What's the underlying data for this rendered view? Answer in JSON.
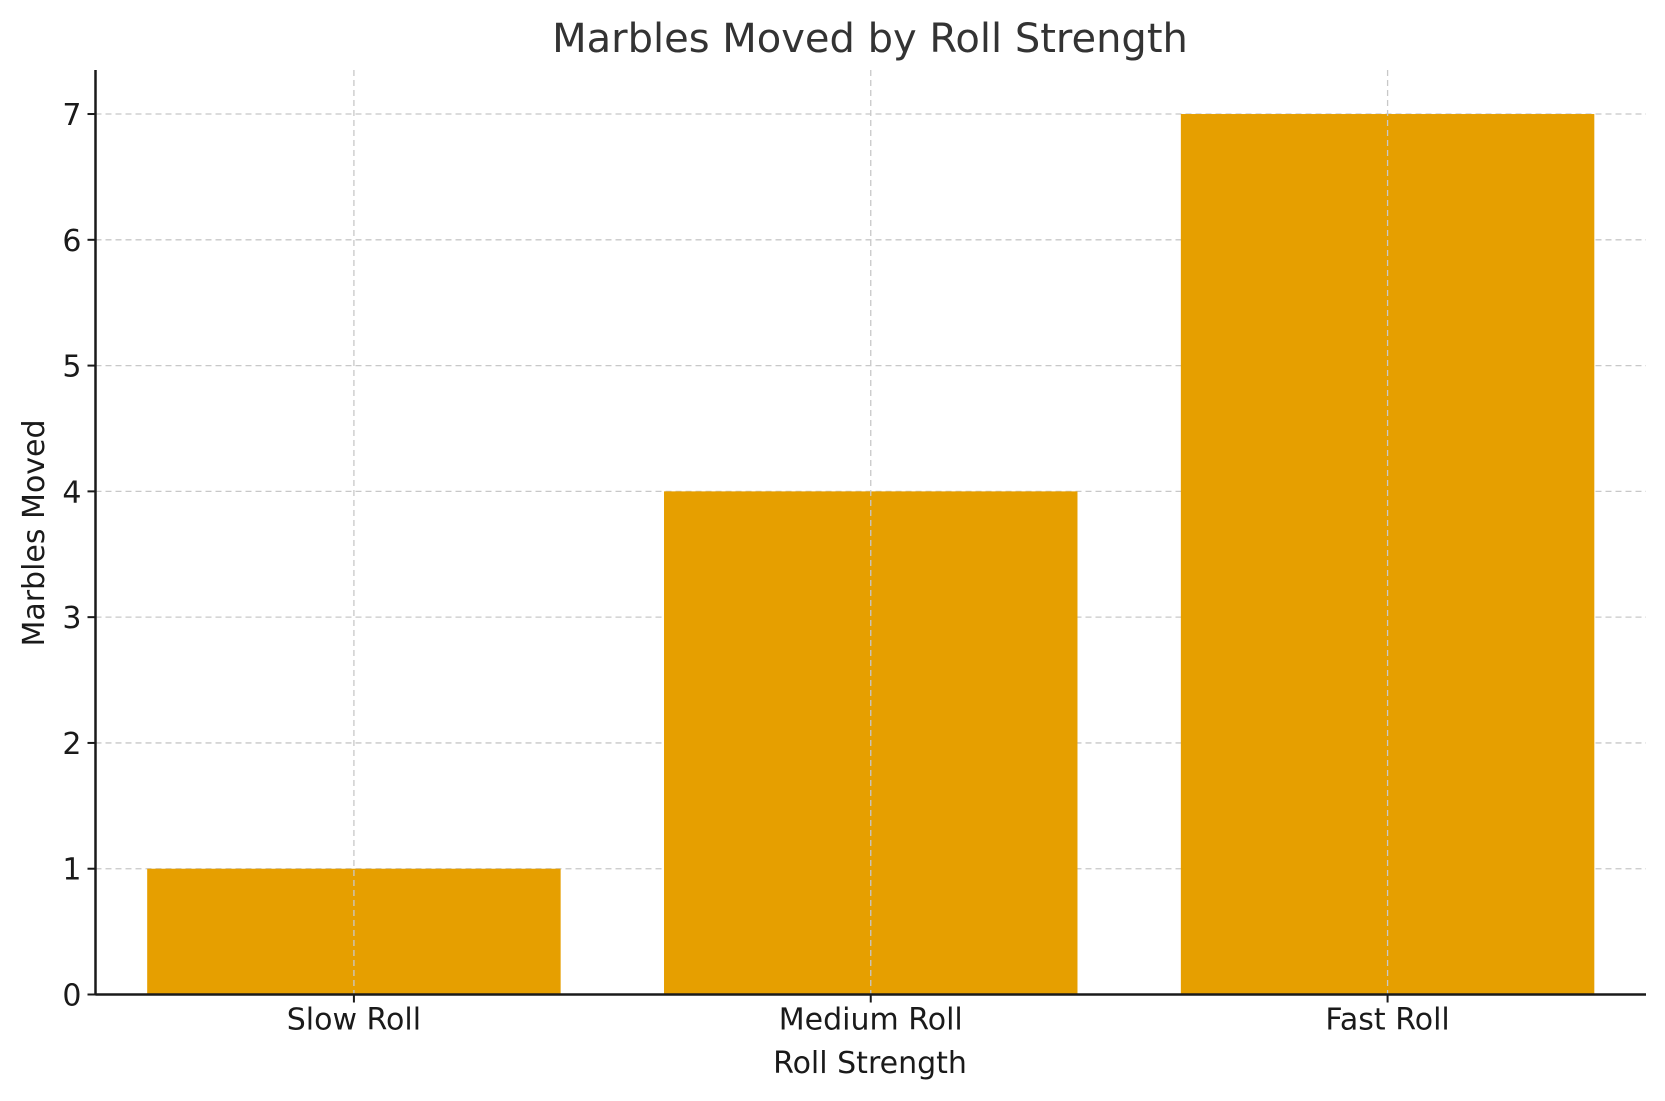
{
  "chart_data": {
    "type": "bar",
    "title": "Marbles Moved by Roll Strength",
    "xlabel": "Roll Strength",
    "ylabel": "Marbles Moved",
    "categories": [
      "Slow Roll",
      "Medium Roll",
      "Fast Roll"
    ],
    "values": [
      1,
      4,
      7
    ],
    "ylim": [
      0,
      7.35
    ],
    "yticks": [
      0,
      1,
      2,
      3,
      4,
      5,
      6,
      7
    ],
    "grid": true,
    "bar_color": "#E69F00"
  }
}
